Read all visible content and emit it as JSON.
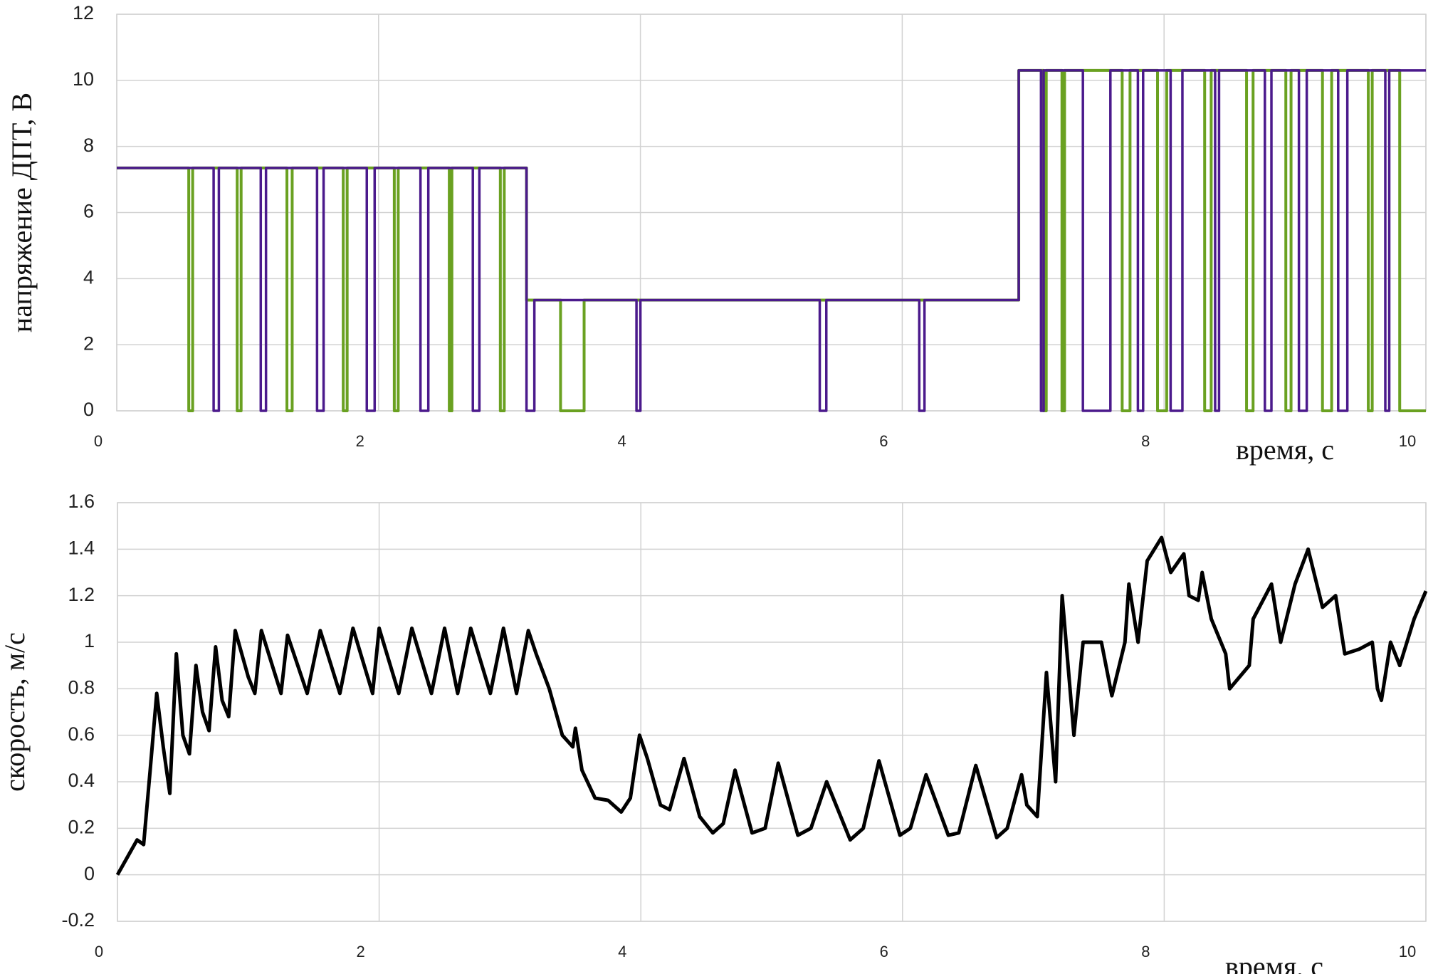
{
  "chart_data": [
    {
      "type": "line",
      "y_label": "напряжение ДПТ, В",
      "x_label": "время, с",
      "xlim": [
        0,
        10
      ],
      "xticks": [
        0,
        2,
        4,
        6,
        8,
        10
      ],
      "ylim": [
        0,
        12
      ],
      "yticks": [
        0,
        2,
        4,
        6,
        8,
        10,
        12
      ],
      "grid": true,
      "series": [
        {
          "color": "#6aa121",
          "x": [
            0,
            0.55,
            0.55,
            0.58,
            0.58,
            0.92,
            0.92,
            0.95,
            0.95,
            1.3,
            1.3,
            1.34,
            1.34,
            1.73,
            1.73,
            1.76,
            1.76,
            2.12,
            2.12,
            2.15,
            2.15,
            2.54,
            2.54,
            2.56,
            2.56,
            2.93,
            2.93,
            2.96,
            2.96,
            3.13,
            3.13,
            3.39,
            3.39,
            3.57,
            3.57,
            6.89,
            6.89,
            7.08,
            7.08,
            7.1,
            7.1,
            7.22,
            7.22,
            7.24,
            7.24,
            7.68,
            7.68,
            7.74,
            7.74,
            7.95,
            7.95,
            8.02,
            8.02,
            8.31,
            8.31,
            8.36,
            8.36,
            8.63,
            8.63,
            8.68,
            8.68,
            8.93,
            8.93,
            8.97,
            8.97,
            9.21,
            9.21,
            9.28,
            9.28,
            9.56,
            9.56,
            9.59,
            9.59,
            9.8,
            9.8,
            10
          ],
          "values": [
            7.35,
            7.35,
            0,
            0,
            7.35,
            7.35,
            0,
            0,
            7.35,
            7.35,
            0,
            0,
            7.35,
            7.35,
            0,
            0,
            7.35,
            7.35,
            0,
            0,
            7.35,
            7.35,
            0,
            0,
            7.35,
            7.35,
            0,
            0,
            7.35,
            7.35,
            3.35,
            3.35,
            0,
            0,
            3.35,
            3.35,
            10.3,
            10.3,
            0,
            0,
            10.3,
            10.3,
            0,
            0,
            10.3,
            10.3,
            0,
            0,
            10.3,
            10.3,
            0,
            0,
            10.3,
            10.3,
            0,
            0,
            10.3,
            10.3,
            0,
            0,
            10.3,
            10.3,
            0,
            0,
            10.3,
            10.3,
            0,
            0,
            10.3,
            10.3,
            0,
            0,
            10.3,
            10.3,
            0,
            0
          ]
        },
        {
          "color": "#4b1a8c",
          "x": [
            0,
            0.74,
            0.74,
            0.78,
            0.78,
            1.1,
            1.1,
            1.14,
            1.14,
            1.53,
            1.53,
            1.58,
            1.58,
            1.91,
            1.91,
            1.97,
            1.97,
            2.32,
            2.32,
            2.38,
            2.38,
            2.72,
            2.72,
            2.77,
            2.77,
            3.13,
            3.13,
            3.19,
            3.19,
            3.97,
            3.97,
            4.0,
            4.0,
            5.37,
            5.37,
            5.42,
            5.42,
            6.13,
            6.13,
            6.17,
            6.17,
            6.89,
            6.89,
            7.06,
            7.06,
            7.08,
            7.08,
            7.38,
            7.38,
            7.59,
            7.59,
            7.8,
            7.8,
            7.84,
            7.84,
            8.05,
            8.05,
            8.14,
            8.14,
            8.39,
            8.39,
            8.42,
            8.42,
            8.77,
            8.77,
            8.82,
            8.82,
            9.03,
            9.03,
            9.09,
            9.09,
            9.33,
            9.33,
            9.4,
            9.4,
            9.69,
            9.69,
            9.72,
            9.72,
            10
          ],
          "values": [
            7.35,
            7.35,
            0,
            0,
            7.35,
            7.35,
            0,
            0,
            7.35,
            7.35,
            0,
            0,
            7.35,
            7.35,
            0,
            0,
            7.35,
            7.35,
            0,
            0,
            7.35,
            7.35,
            0,
            0,
            7.35,
            7.35,
            0,
            0,
            3.35,
            3.35,
            0,
            0,
            3.35,
            3.35,
            0,
            0,
            3.35,
            3.35,
            0,
            0,
            3.35,
            3.35,
            10.3,
            10.3,
            0,
            0,
            10.3,
            10.3,
            0,
            0,
            10.3,
            10.3,
            0,
            0,
            10.3,
            10.3,
            0,
            0,
            10.3,
            10.3,
            0,
            0,
            10.3,
            10.3,
            0,
            0,
            10.3,
            10.3,
            0,
            0,
            10.3,
            10.3,
            0,
            0,
            10.3,
            10.3,
            0,
            0,
            10.3,
            10.3
          ]
        }
      ]
    },
    {
      "type": "line",
      "y_label": "скорость, м/с",
      "x_label": "время, с",
      "xlim": [
        0,
        10
      ],
      "xticks": [
        0,
        2,
        4,
        6,
        8,
        10
      ],
      "ylim": [
        -0.2,
        1.6
      ],
      "yticks": [
        -0.2,
        0,
        0.2,
        0.4,
        0.6,
        0.8,
        1,
        1.2,
        1.4,
        1.6
      ],
      "grid": true,
      "x": [
        0,
        0.1,
        0.15,
        0.2,
        0.25,
        0.3,
        0.35,
        0.4,
        0.45,
        0.5,
        0.55,
        0.6,
        0.65,
        0.7,
        0.75,
        0.8,
        0.85,
        0.9,
        1.0,
        1.05,
        1.1,
        1.25,
        1.3,
        1.45,
        1.55,
        1.7,
        1.8,
        1.95,
        2.0,
        2.15,
        2.25,
        2.4,
        2.5,
        2.6,
        2.7,
        2.85,
        2.95,
        3.05,
        3.14,
        3.2,
        3.3,
        3.4,
        3.48,
        3.5,
        3.55,
        3.65,
        3.75,
        3.85,
        3.92,
        3.99,
        4.05,
        4.15,
        4.22,
        4.33,
        4.45,
        4.55,
        4.63,
        4.72,
        4.85,
        4.95,
        5.05,
        5.2,
        5.3,
        5.42,
        5.6,
        5.7,
        5.82,
        5.98,
        6.06,
        6.18,
        6.35,
        6.43,
        6.56,
        6.72,
        6.8,
        6.91,
        6.95,
        7.03,
        7.1,
        7.17,
        7.22,
        7.31,
        7.38,
        7.52,
        7.6,
        7.7,
        7.73,
        7.8,
        7.87,
        7.98,
        8.05,
        8.15,
        8.19,
        8.26,
        8.29,
        8.36,
        8.47,
        8.5,
        8.65,
        8.68,
        8.82,
        8.89,
        9.0,
        9.1,
        9.21,
        9.31,
        9.38,
        9.49,
        9.59,
        9.63,
        9.66,
        9.73,
        9.8,
        9.91,
        10
      ],
      "series": [
        {
          "color": "#000000",
          "values": [
            0,
            0.1,
            0.15,
            0.13,
            0.45,
            0.78,
            0.55,
            0.35,
            0.95,
            0.6,
            0.52,
            0.9,
            0.7,
            0.62,
            0.98,
            0.75,
            0.68,
            1.05,
            0.85,
            0.78,
            1.05,
            0.78,
            1.03,
            0.78,
            1.05,
            0.78,
            1.06,
            0.78,
            1.06,
            0.78,
            1.06,
            0.78,
            1.06,
            0.78,
            1.06,
            0.78,
            1.06,
            0.78,
            1.05,
            0.95,
            0.8,
            0.6,
            0.55,
            0.63,
            0.45,
            0.33,
            0.32,
            0.27,
            0.33,
            0.6,
            0.5,
            0.3,
            0.28,
            0.5,
            0.25,
            0.18,
            0.22,
            0.45,
            0.18,
            0.2,
            0.48,
            0.17,
            0.2,
            0.4,
            0.15,
            0.2,
            0.49,
            0.17,
            0.2,
            0.43,
            0.17,
            0.18,
            0.47,
            0.16,
            0.2,
            0.43,
            0.3,
            0.25,
            0.87,
            0.4,
            1.2,
            0.6,
            1.0,
            1.0,
            0.77,
            1.0,
            1.25,
            1.0,
            1.35,
            1.45,
            1.3,
            1.38,
            1.2,
            1.18,
            1.3,
            1.1,
            0.95,
            0.8,
            0.9,
            1.1,
            1.25,
            1.0,
            1.25,
            1.4,
            1.15,
            1.2,
            0.95,
            0.97,
            1.0,
            0.8,
            0.75,
            1.0,
            0.9,
            1.1,
            1.22
          ]
        }
      ]
    }
  ]
}
